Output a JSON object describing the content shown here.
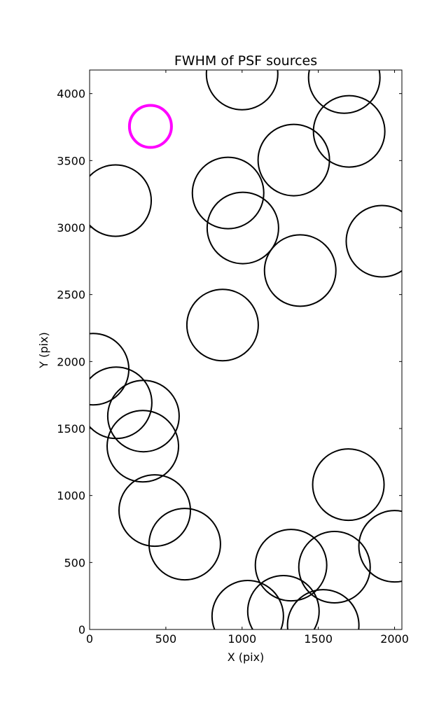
{
  "chart_data": {
    "type": "scatter",
    "title": "FWHM of PSF sources",
    "x_label": "X (pix)",
    "y_label": "Y (pix)",
    "xlim": [
      0,
      2048
    ],
    "ylim": [
      0,
      4176
    ],
    "xticks": [
      0,
      500,
      1000,
      1500,
      2000
    ],
    "yticks": [
      0,
      500,
      1000,
      1500,
      2000,
      2500,
      3000,
      3500,
      4000
    ],
    "marker": "open-circle",
    "series": [
      {
        "color": "#000000",
        "linewidth": 2,
        "x": [
          1000,
          1670,
          1702,
          1339,
          170,
          908,
          1005,
          1917,
          1381,
          872,
          23,
          174,
          353,
          349,
          1697,
          427,
          624,
          1321,
          1606,
          2000,
          1037,
          1271,
          1532
        ],
        "y": [
          4146,
          4120,
          3718,
          3504,
          3201,
          3258,
          2997,
          2898,
          2679,
          2272,
          1943,
          1692,
          1593,
          1368,
          1081,
          888,
          637,
          480,
          465,
          621,
          99,
          136,
          31
        ],
        "sizes": [
          51,
          51,
          51,
          51,
          51,
          51,
          51,
          51,
          51,
          51,
          51,
          51,
          51,
          51,
          51,
          51,
          51,
          51,
          51,
          51,
          51,
          51,
          51
        ]
      },
      {
        "color": "#ff00ff",
        "linewidth": 4,
        "x": [
          399
        ],
        "y": [
          3755
        ],
        "sizes": [
          30
        ]
      }
    ]
  }
}
